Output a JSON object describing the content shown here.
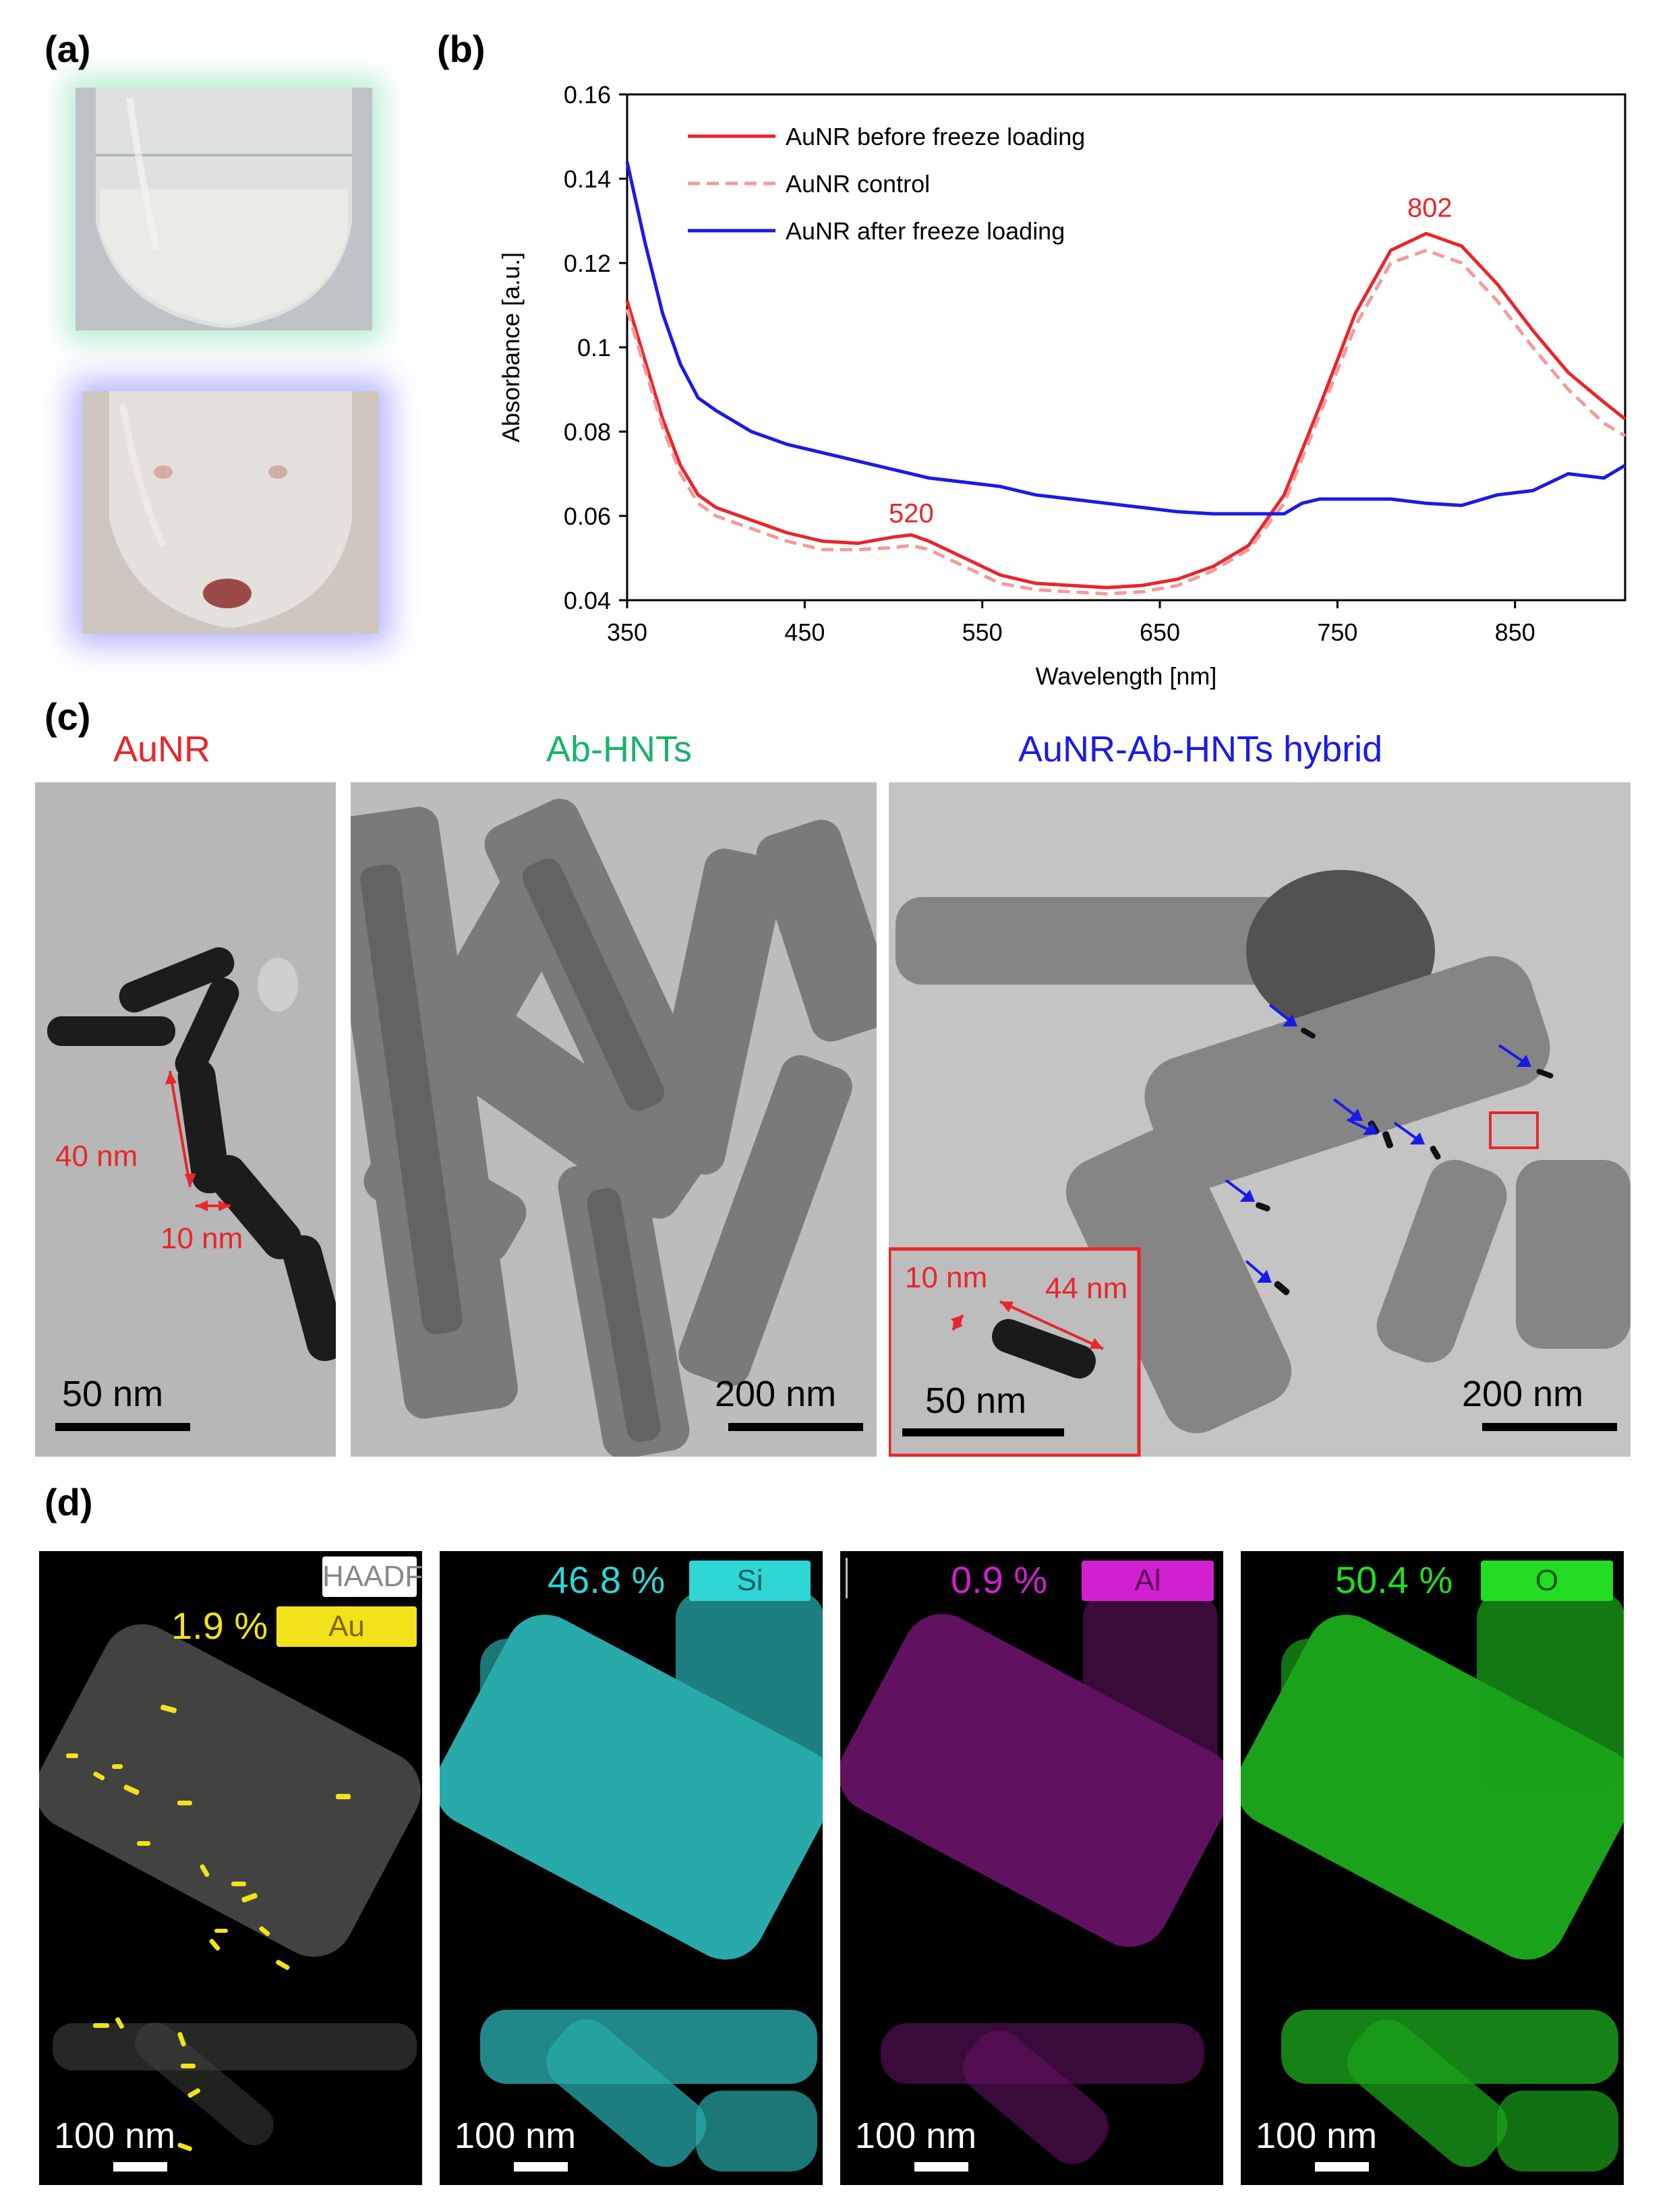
{
  "panel_labels": {
    "a": "(a)",
    "b": "(b)",
    "c": "(c)",
    "d": "(d)"
  },
  "colors": {
    "red": "#e8262b",
    "pink": "#f49a9a",
    "blue": "#1a1ae6",
    "green": "#19b36b",
    "cyan": "#2fd6d6",
    "magenta": "#d020d0",
    "lime": "#22dd22",
    "yellow": "#f2e21a"
  },
  "chart_data": {
    "type": "line",
    "xlabel": "Wavelength [nm]",
    "ylabel": "Absorbance [a.u.]",
    "xlim": [
      350,
      912
    ],
    "ylim": [
      0.04,
      0.16
    ],
    "xticks": [
      350,
      450,
      550,
      650,
      750,
      850
    ],
    "yticks": [
      0.04,
      0.06,
      0.08,
      0.1,
      0.12,
      0.14,
      0.16
    ],
    "ytick_labels": [
      "0.04",
      "0.06",
      "0.08",
      "0.1",
      "0.12",
      "0.14",
      "0.16"
    ],
    "grid": false,
    "legend_position": "top-left",
    "annotations": [
      {
        "text": "802",
        "x": 802,
        "y": 0.131
      },
      {
        "text": "520",
        "x": 510,
        "y": 0.0585
      }
    ],
    "series": [
      {
        "name": "AuNR before freeze loading",
        "color": "#e8262b",
        "style": "solid",
        "x": [
          350,
          360,
          370,
          380,
          390,
          400,
          420,
          440,
          460,
          480,
          500,
          510,
          520,
          540,
          560,
          580,
          600,
          620,
          640,
          660,
          680,
          700,
          720,
          740,
          760,
          780,
          800,
          820,
          840,
          860,
          880,
          900,
          912
        ],
        "y": [
          0.111,
          0.097,
          0.083,
          0.072,
          0.065,
          0.062,
          0.059,
          0.056,
          0.054,
          0.0535,
          0.055,
          0.0555,
          0.054,
          0.05,
          0.046,
          0.044,
          0.0435,
          0.043,
          0.0435,
          0.045,
          0.048,
          0.053,
          0.065,
          0.086,
          0.108,
          0.123,
          0.127,
          0.124,
          0.115,
          0.104,
          0.094,
          0.087,
          0.083
        ]
      },
      {
        "name": "AuNR control",
        "color": "#f49a9a",
        "style": "dashed",
        "x": [
          350,
          360,
          370,
          380,
          390,
          400,
          420,
          440,
          460,
          480,
          500,
          510,
          520,
          540,
          560,
          580,
          600,
          620,
          640,
          660,
          680,
          700,
          720,
          740,
          760,
          780,
          800,
          820,
          840,
          860,
          880,
          900,
          912
        ],
        "y": [
          0.109,
          0.095,
          0.081,
          0.07,
          0.063,
          0.06,
          0.057,
          0.054,
          0.052,
          0.052,
          0.0525,
          0.053,
          0.052,
          0.048,
          0.044,
          0.0425,
          0.042,
          0.0415,
          0.042,
          0.0435,
          0.047,
          0.052,
          0.063,
          0.084,
          0.105,
          0.12,
          0.123,
          0.12,
          0.111,
          0.1,
          0.09,
          0.082,
          0.079
        ]
      },
      {
        "name": "AuNR after freeze loading",
        "color": "#1a1ae6",
        "style": "solid",
        "x": [
          350,
          360,
          370,
          380,
          390,
          400,
          420,
          440,
          460,
          480,
          500,
          520,
          540,
          560,
          580,
          600,
          620,
          640,
          660,
          680,
          700,
          720,
          730,
          740,
          760,
          780,
          800,
          820,
          840,
          860,
          880,
          900,
          912
        ],
        "y": [
          0.144,
          0.125,
          0.108,
          0.096,
          0.088,
          0.085,
          0.08,
          0.077,
          0.075,
          0.073,
          0.071,
          0.069,
          0.068,
          0.067,
          0.065,
          0.064,
          0.063,
          0.062,
          0.061,
          0.0605,
          0.0605,
          0.0605,
          0.063,
          0.064,
          0.064,
          0.064,
          0.063,
          0.0625,
          0.065,
          0.066,
          0.07,
          0.069,
          0.072
        ]
      }
    ]
  },
  "panel_c": {
    "titles": {
      "aunr": "AuNR",
      "abhnts": "Ab-HNTs",
      "hybrid": "AuNR-Ab-HNTs hybrid"
    },
    "measurements": {
      "length": "40 nm",
      "width": "10 nm",
      "inset_width": "10 nm",
      "inset_length": "44 nm"
    },
    "scalebars": {
      "aunr": "50 nm",
      "abhnts": "200 nm",
      "hybrid": "200 nm",
      "inset": "50 nm"
    }
  },
  "panel_d": {
    "maps": [
      {
        "element": "Au",
        "percent": "1.9 %",
        "extra_badge": "HAADF",
        "scale": "100 nm"
      },
      {
        "element": "Si",
        "percent": "46.8 %",
        "scale": "100 nm"
      },
      {
        "element": "Al",
        "percent": "0.9 %",
        "scale": "100 nm"
      },
      {
        "element": "O",
        "percent": "50.4 %",
        "scale": "100 nm"
      }
    ]
  }
}
